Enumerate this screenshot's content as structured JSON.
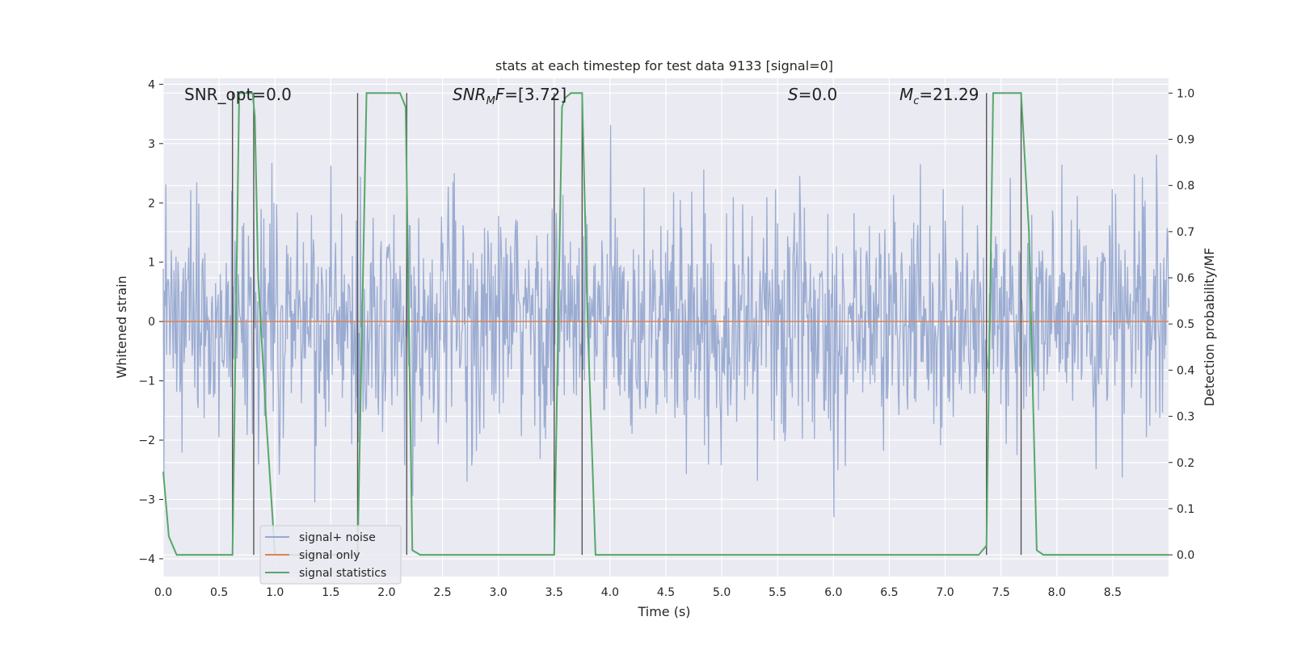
{
  "chart_data": {
    "type": "line",
    "title": "stats at each timestep for test data 9133 [signal=0]",
    "xlabel": "Time (s)",
    "ylabel": "Whitened strain",
    "y2label": "Detection probability/MF",
    "xlim": [
      0.0,
      9.0
    ],
    "ylim": [
      -4.3,
      4.1
    ],
    "y2lim": [
      -0.047,
      1.032
    ],
    "x_ticks": [
      "0.0",
      "0.5",
      "1.0",
      "1.5",
      "2.0",
      "2.5",
      "3.0",
      "3.5",
      "4.0",
      "4.5",
      "5.0",
      "5.5",
      "6.0",
      "6.5",
      "7.0",
      "7.5",
      "8.0",
      "8.5"
    ],
    "y_ticks": [
      "4",
      "3",
      "2",
      "1",
      "0",
      "−1",
      "−2",
      "−3",
      "−4"
    ],
    "y2_ticks": [
      "1.0",
      "0.9",
      "0.8",
      "0.7",
      "0.6",
      "0.5",
      "0.4",
      "0.3",
      "0.2",
      "0.1",
      "0.0"
    ],
    "grid": true,
    "legend_position": "lower-left",
    "annotations": {
      "snr_opt": "SNR_opt=0.0",
      "snr_mf_sym": "SNR",
      "snr_mf_sub": "M",
      "snr_mf_mid": "F",
      "snr_mf_val": "=[3.72]",
      "s_sym": "S",
      "s_val": "=0.0",
      "mc_sym": "M",
      "mc_sub": "c",
      "mc_val": "=21.29"
    },
    "series": [
      {
        "name": "signal+ noise",
        "color": "#97a9d0",
        "description": "whitened noise trace, amplitude ~N(0,1), extremes about -4 to +4",
        "approx_envelope": [
          -4.0,
          4.0
        ]
      },
      {
        "name": "signal only",
        "color": "#dd8452",
        "x": [
          0.0,
          9.0
        ],
        "y": [
          0.0,
          0.0
        ]
      },
      {
        "name": "signal statistics",
        "color": "#55a868",
        "axis": "right",
        "x": [
          0.0,
          0.05,
          0.12,
          0.3,
          0.5,
          0.62,
          0.68,
          0.7,
          0.8,
          0.82,
          0.85,
          0.92,
          1.0,
          1.5,
          1.74,
          1.78,
          1.82,
          2.0,
          2.12,
          2.17,
          2.23,
          2.3,
          2.5,
          3.0,
          3.5,
          3.57,
          3.6,
          3.65,
          3.75,
          3.8,
          3.87,
          4.0,
          5.0,
          6.0,
          7.0,
          7.3,
          7.37,
          7.43,
          7.55,
          7.68,
          7.75,
          7.82,
          7.88,
          8.5,
          9.0
        ],
        "y": [
          0.18,
          0.04,
          0.0,
          0.0,
          0.0,
          0.0,
          1.0,
          1.0,
          1.0,
          0.95,
          0.6,
          0.3,
          0.0,
          0.0,
          0.0,
          0.5,
          1.0,
          1.0,
          1.0,
          0.97,
          0.01,
          0.0,
          0.0,
          0.0,
          0.0,
          0.97,
          0.99,
          1.0,
          1.0,
          0.5,
          0.0,
          0.0,
          0.0,
          0.0,
          0.0,
          0.0,
          0.02,
          1.0,
          1.0,
          1.0,
          0.7,
          0.01,
          0.0,
          0.0,
          0.0
        ]
      }
    ],
    "vertical_markers_x": [
      0.62,
      0.81,
      1.74,
      2.18,
      3.5,
      3.75,
      7.37,
      7.68
    ]
  }
}
